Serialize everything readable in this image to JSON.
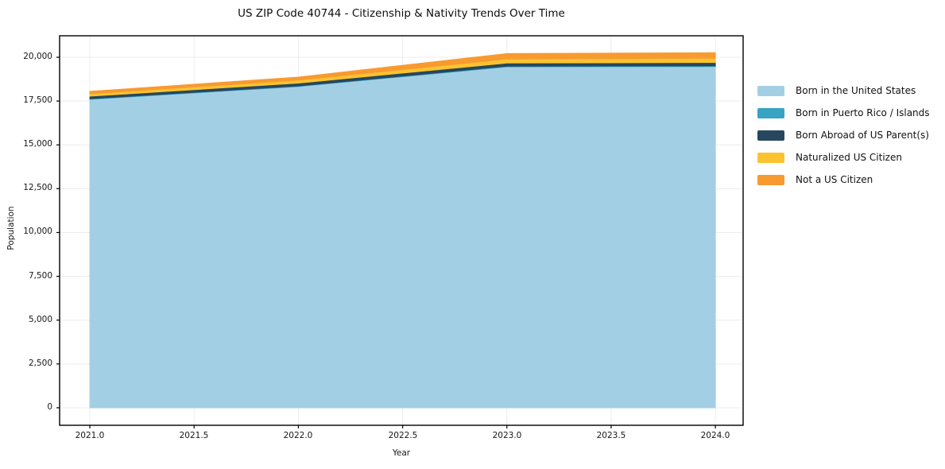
{
  "figure": {
    "background": "#ffffff"
  },
  "chart_data": {
    "type": "area",
    "stacked": true,
    "title": "US ZIP Code 40744 - Citizenship & Nativity Trends Over Time",
    "xlabel": "Year",
    "ylabel": "Population",
    "x": [
      2021,
      2022,
      2023,
      2024
    ],
    "series": [
      {
        "name": "Born in the United States",
        "color": "#A3CFE4",
        "values": [
          17600,
          18330,
          19450,
          19470
        ]
      },
      {
        "name": "Born in Puerto Rico / Islands",
        "color": "#38A3C2",
        "values": [
          30,
          30,
          40,
          40
        ]
      },
      {
        "name": "Born Abroad of US Parent(s)",
        "color": "#26475E",
        "values": [
          150,
          165,
          180,
          190
        ]
      },
      {
        "name": "Naturalized US Citizen",
        "color": "#FCC330",
        "values": [
          135,
          170,
          230,
          250
        ]
      },
      {
        "name": "Not a US Citizen",
        "color": "#F79A30",
        "values": [
          140,
          170,
          310,
          310
        ]
      }
    ],
    "xlim": [
      2020.855,
      2024.133
    ],
    "ylim": [
      -1000,
      21225
    ],
    "xticks": [
      2021.0,
      2021.5,
      2022.0,
      2022.5,
      2023.0,
      2023.5,
      2024.0
    ],
    "xtick_labels": [
      "2021.0",
      "2021.5",
      "2022.0",
      "2022.5",
      "2023.0",
      "2023.5",
      "2024.0"
    ],
    "yticks": [
      0,
      2500,
      5000,
      7500,
      10000,
      12500,
      15000,
      17500,
      20000
    ],
    "ytick_labels": [
      "0",
      "2,500",
      "5,000",
      "7,500",
      "10,000",
      "12,500",
      "15,000",
      "17,500",
      "20,000"
    ],
    "grid": true,
    "gridline_color": "#ececec",
    "spine_color": "#000000",
    "legend_position": "right"
  }
}
